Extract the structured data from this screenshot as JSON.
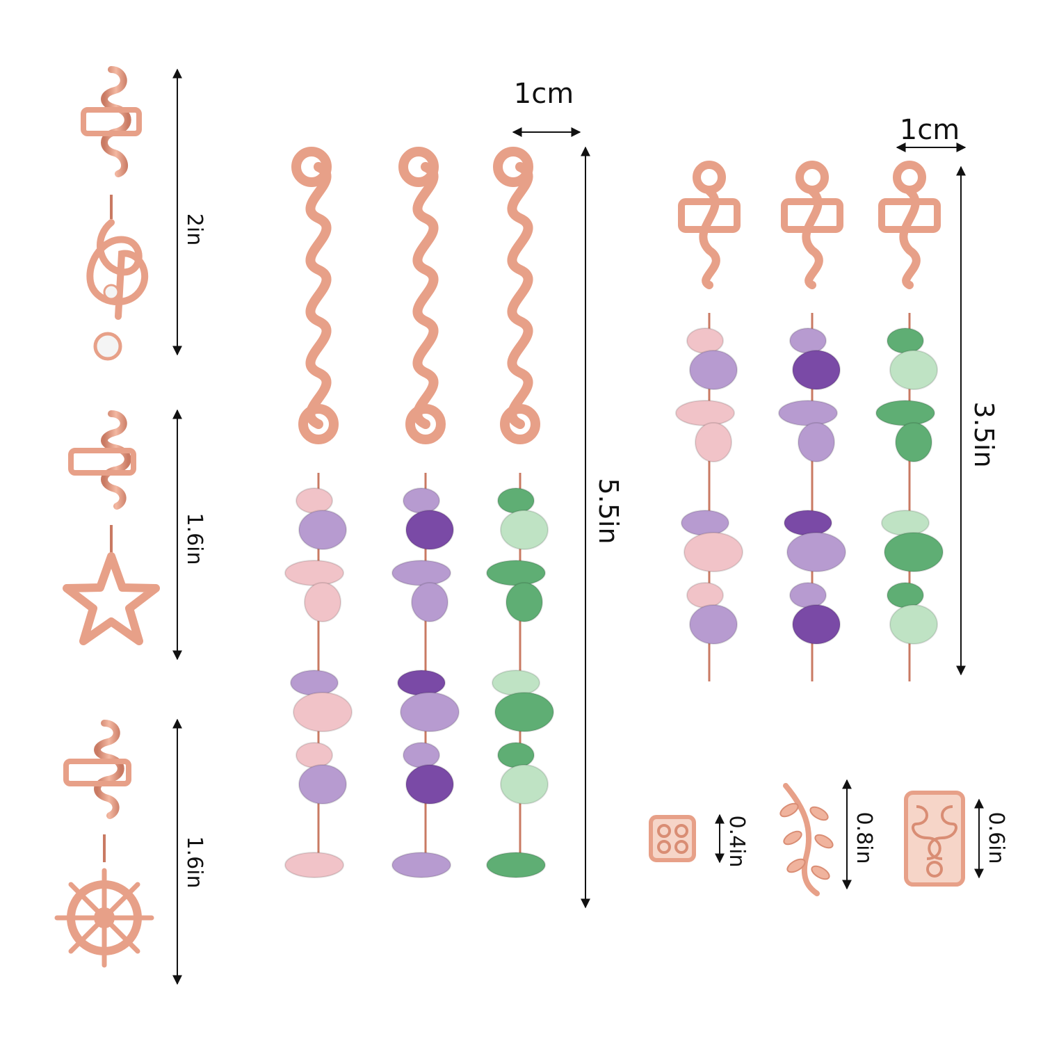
{
  "labels": {
    "clef_height": "2in",
    "star_height": "1.6in",
    "wheel_height": "1.6in",
    "long_width": "1cm",
    "long_height": "5.5in",
    "medium_width": "1cm",
    "medium_height": "3.5in",
    "cuff_a": "0.4in",
    "cuff_b": "0.8in",
    "cuff_c": "0.6in"
  },
  "colors": {
    "background": "#ffffff",
    "gold": "#e7a088",
    "gold_dark": "#c97a63",
    "rose_quartz": "#f1c3c8",
    "amethyst": "#7a4aa6",
    "amethyst_light": "#b79bd0",
    "aventurine": "#5fae74",
    "aventurine_light": "#bfe3c4",
    "arrow": "#111111"
  },
  "icons": {
    "clef": "treble-clef-pendant-icon",
    "star": "star-pendant-icon",
    "wheel": "ship-wheel-pendant-icon"
  }
}
